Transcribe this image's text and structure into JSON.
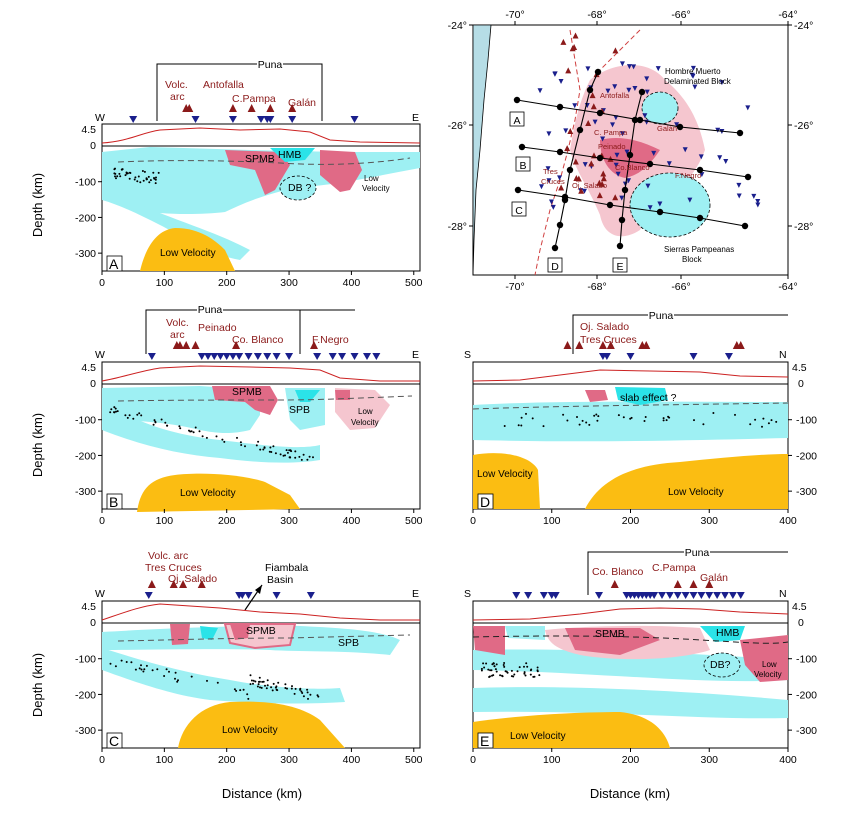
{
  "colors": {
    "cyan": "#9ef0f3",
    "cyanDark": "#2be3e8",
    "pinkLight": "#f5c6cf",
    "pinkDark": "#e06a86",
    "orange": "#fbbd12",
    "volcano": "#8b1a1a",
    "station": "#1a1f8c",
    "topo": "#cc2222",
    "sea": "#b6dde6"
  },
  "chart_data": [
    {
      "type": "scatter",
      "panel": "A",
      "ends": [
        "W",
        "E"
      ],
      "xlabel": "",
      "ylabel": "Depth (km)",
      "xlim": [
        0,
        510
      ],
      "ylim": [
        -350,
        0
      ],
      "xticks": [
        "0",
        "100",
        "200",
        "300",
        "400",
        "500"
      ],
      "yticks": [
        "-300",
        "-200",
        "-100",
        "0"
      ],
      "elev_tick": "4.5",
      "puna": "Puna",
      "volcanoes": [
        "Volc.",
        "arc",
        "Antofalla",
        "C.Pampa",
        "Galán"
      ],
      "features": [
        "SPMB",
        "HMB",
        "DB ?",
        "Low",
        "Velocity",
        "Low Velocity"
      ],
      "stations_x": [
        50,
        150,
        210,
        255,
        265,
        270,
        305,
        405
      ],
      "volcanoes_x": [
        135,
        140,
        210,
        240,
        270,
        305
      ]
    },
    {
      "type": "scatter",
      "panel": "B",
      "ends": [
        "W",
        "E"
      ],
      "xlabel": "",
      "ylabel": "Depth (km)",
      "xlim": [
        0,
        510
      ],
      "ylim": [
        -350,
        0
      ],
      "xticks": [
        "0",
        "100",
        "200",
        "300",
        "400",
        "500"
      ],
      "yticks": [
        "-300",
        "-200",
        "-100",
        "0"
      ],
      "elev_tick": "4.5",
      "puna": "Puna",
      "volcanoes": [
        "Volc.",
        "arc",
        "Peinado",
        "Co. Blanco",
        "F.Negro"
      ],
      "features": [
        "SPMB",
        "SPB",
        "Low",
        "Velocity",
        "Low Velocity"
      ],
      "stations_x": [
        80,
        160,
        170,
        180,
        190,
        200,
        210,
        220,
        235,
        250,
        265,
        280,
        300,
        345,
        370,
        385,
        405,
        425,
        440
      ],
      "volcanoes_x": [
        120,
        125,
        135,
        150,
        215,
        340
      ]
    },
    {
      "type": "scatter",
      "panel": "C",
      "ends": [
        "W",
        "E"
      ],
      "xlabel": "Distance (km)",
      "ylabel": "Depth (km)",
      "xlim": [
        0,
        510
      ],
      "ylim": [
        -350,
        0
      ],
      "xticks": [
        "0",
        "100",
        "200",
        "300",
        "400",
        "500"
      ],
      "yticks": [
        "-300",
        "-200",
        "-100",
        "0"
      ],
      "elev_tick": "4.5",
      "volcanoes": [
        "Volc. arc",
        "Tres Cruces",
        "Oj. Salado"
      ],
      "annotation": [
        "Fiambala",
        "Basin"
      ],
      "features": [
        "SPMB",
        "SPB",
        "Low Velocity"
      ],
      "stations_x": [
        75,
        220,
        225,
        235,
        280,
        335
      ],
      "volcanoes_x": [
        80,
        115,
        130,
        160
      ]
    },
    {
      "type": "scatter",
      "panel": "D",
      "ends": [
        "S",
        "N"
      ],
      "xlabel": "",
      "ylabel": "",
      "xlim": [
        0,
        400
      ],
      "ylim": [
        -350,
        0
      ],
      "xticks": [
        "0",
        "100",
        "200",
        "300",
        "400"
      ],
      "yticks": [
        "-300",
        "-200",
        "-100",
        "0"
      ],
      "elev_tick": "4.5",
      "puna": "Puna",
      "volcanoes": [
        "Oj. Salado",
        "Tres Cruces"
      ],
      "features": [
        "slab effect ?",
        "Low Velocity",
        "Low Velocity"
      ],
      "stations_x": [
        165,
        170,
        200,
        280,
        325
      ],
      "volcanoes_x": [
        120,
        135,
        165,
        175,
        215,
        220,
        335,
        340
      ]
    },
    {
      "type": "scatter",
      "panel": "E",
      "ends": [
        "S",
        "N"
      ],
      "xlabel": "Distance (km)",
      "ylabel": "",
      "xlim": [
        0,
        400
      ],
      "ylim": [
        -350,
        0
      ],
      "xticks": [
        "0",
        "100",
        "200",
        "300",
        "400"
      ],
      "yticks": [
        "-300",
        "-200",
        "-100",
        "0"
      ],
      "elev_tick": "4.5",
      "puna": "Puna",
      "volcanoes": [
        "Co. Blanco",
        "C.Pampa",
        "Galán"
      ],
      "features": [
        "SPMB",
        "HMB",
        "DB?",
        "Low",
        "Velocity",
        "Low Velocity"
      ],
      "stations_x": [
        55,
        70,
        90,
        100,
        105,
        160,
        195,
        200,
        205,
        210,
        215,
        220,
        225,
        230,
        240,
        250,
        260,
        270,
        280,
        290,
        300,
        310,
        320,
        330,
        340
      ],
      "volcanoes_x": [
        180,
        260,
        280,
        300
      ]
    }
  ],
  "map": {
    "lon_ticks": [
      "-70°",
      "-68°",
      "-66°",
      "-64°"
    ],
    "lat_ticks": [
      "-24°",
      "-26°",
      "-28°"
    ],
    "lines": [
      "A",
      "B",
      "C",
      "D",
      "E"
    ],
    "labels": [
      "Hombre Muerto",
      "Delaminated Block",
      "Antofalla",
      "Galán",
      "C. Pampa",
      "Peinado",
      "Tres",
      "Cruces",
      "Oj. Salado",
      "Co.Blanco",
      "F.Negro",
      "Sierras Pampeanas",
      "Block"
    ]
  }
}
